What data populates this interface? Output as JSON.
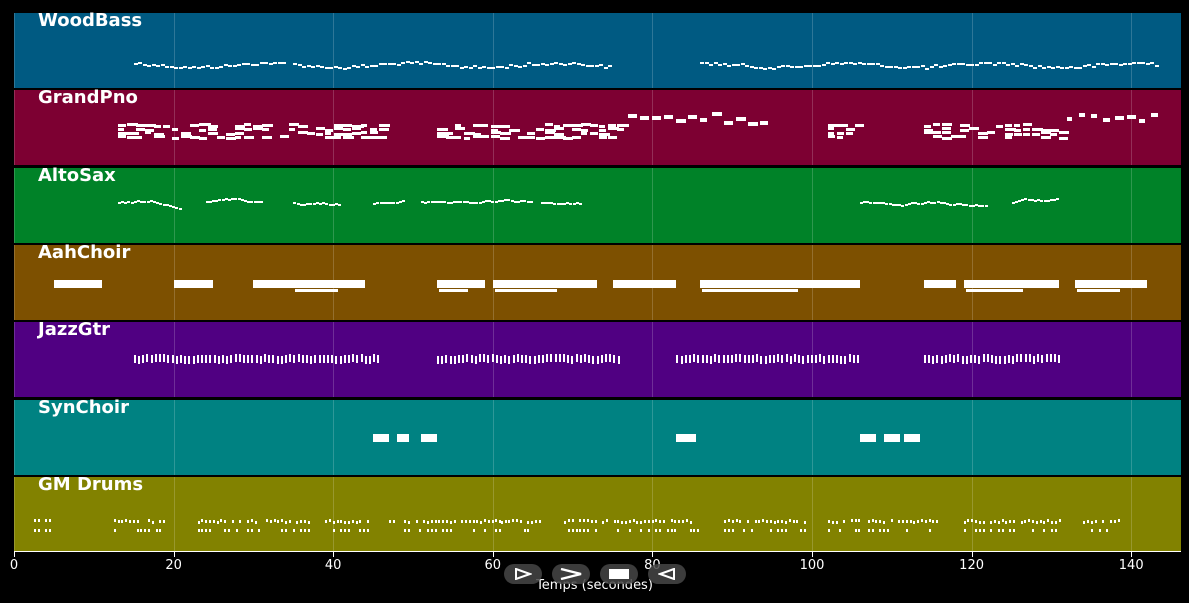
{
  "chart_data": {
    "type": "piano-roll",
    "xlabel": "Temps (secondes)",
    "xlim": [
      0,
      146
    ],
    "x_ticks": [
      0,
      20,
      40,
      60,
      80,
      100,
      120,
      140
    ],
    "tracks": [
      {
        "name": "WoodBass",
        "color": "#005a82",
        "segments": [
          [
            15,
            34,
            "line"
          ],
          [
            35,
            75,
            "line"
          ],
          [
            86,
            143,
            "line"
          ]
        ]
      },
      {
        "name": "GrandPno",
        "color": "#7d0032",
        "segments": [
          [
            13,
            46,
            "block"
          ],
          [
            53,
            76,
            "block"
          ],
          [
            77,
            95,
            "sparse"
          ],
          [
            102,
            106,
            "block"
          ],
          [
            114,
            131,
            "block"
          ],
          [
            132,
            143,
            "sparse"
          ]
        ]
      },
      {
        "name": "AltoSax",
        "color": "#008228",
        "segments": [
          [
            13,
            21,
            "phrase"
          ],
          [
            24,
            31,
            "phrase"
          ],
          [
            35,
            41,
            "phrase"
          ],
          [
            45,
            49,
            "phrase"
          ],
          [
            51,
            65,
            "phrase"
          ],
          [
            66,
            71,
            "phrase"
          ],
          [
            106,
            122,
            "phrase"
          ],
          [
            125,
            131,
            "phrase"
          ]
        ]
      },
      {
        "name": "AahChoir",
        "color": "#7d5000",
        "segments": [
          [
            5,
            11,
            "pad"
          ],
          [
            20,
            25,
            "pad"
          ],
          [
            30,
            35,
            "pad"
          ],
          [
            35,
            44,
            "pad"
          ],
          [
            53,
            59,
            "pad"
          ],
          [
            60,
            73,
            "pad"
          ],
          [
            75,
            83,
            "pad"
          ],
          [
            86,
            106,
            "pad"
          ],
          [
            114,
            118,
            "pad"
          ],
          [
            119,
            131,
            "pad"
          ],
          [
            133,
            142,
            "pad"
          ]
        ]
      },
      {
        "name": "JazzGtr",
        "color": "#500082",
        "segments": [
          [
            15,
            46,
            "strum"
          ],
          [
            53,
            76,
            "strum"
          ],
          [
            83,
            106,
            "strum"
          ],
          [
            114,
            131,
            "strum"
          ]
        ]
      },
      {
        "name": "SynChoir",
        "color": "#008282",
        "segments": [
          [
            45,
            47,
            "pad"
          ],
          [
            48,
            49.5,
            "pad"
          ],
          [
            51,
            53,
            "pad"
          ],
          [
            83,
            85.5,
            "pad"
          ],
          [
            106,
            108,
            "pad"
          ],
          [
            109,
            111,
            "pad"
          ],
          [
            111.5,
            113.5,
            "pad"
          ]
        ]
      },
      {
        "name": "GM Drums",
        "color": "#828200",
        "segments": [
          [
            2.5,
            5,
            "hits"
          ],
          [
            12.5,
            19,
            "hits"
          ],
          [
            23,
            37,
            "hits"
          ],
          [
            39,
            45,
            "hits"
          ],
          [
            47,
            61,
            "hits"
          ],
          [
            61,
            66,
            "hits"
          ],
          [
            68,
            86,
            "hits"
          ],
          [
            89,
            99,
            "hits"
          ],
          [
            102,
            106,
            "hits"
          ],
          [
            107,
            116,
            "hits"
          ],
          [
            119,
            131,
            "hits"
          ],
          [
            134,
            138.5,
            "hits"
          ]
        ]
      }
    ]
  },
  "controls": {
    "play_icon": "play-icon",
    "forward_icon": "fast-forward-icon",
    "stop_icon": "stop-icon",
    "rewind_icon": "rewind-icon"
  }
}
